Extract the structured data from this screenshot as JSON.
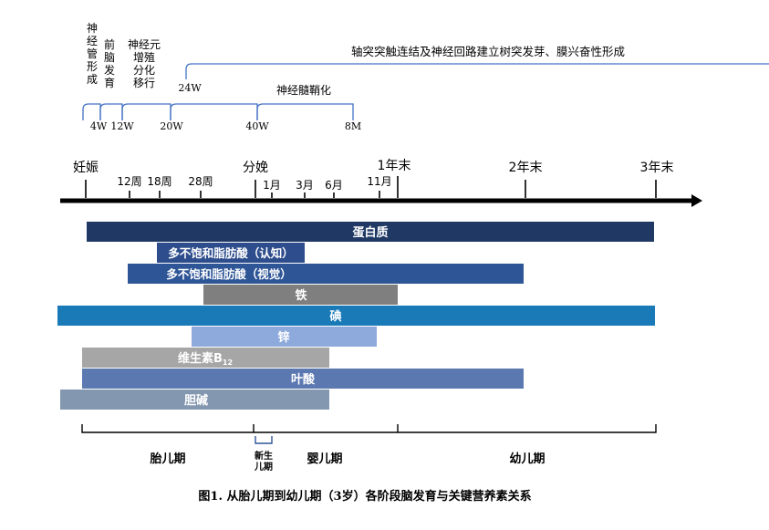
{
  "neuro": {
    "neural_tube": "神\n经\n管\n形\n成",
    "forebrain": "前\n脑\n发\n育",
    "neuron_prolif": "神经元\n增殖\n分化\n移行",
    "synapse": "轴突突触连结及神经回路建立树突发芽、膜兴奋性形成",
    "myelination": "神经髓鞘化",
    "labels": [
      "4W",
      "12W",
      "20W",
      "40W",
      "8M",
      "24W"
    ]
  },
  "timeline": {
    "top_labels": [
      "妊娠",
      "分娩",
      "1年末",
      "2年末",
      "3年末"
    ],
    "upper_ticks": [
      "12周",
      "18周",
      "28周",
      "11月"
    ],
    "lower_ticks": [
      "1月",
      "3月",
      "6月"
    ]
  },
  "nutrients": [
    {
      "label": "蛋白质",
      "color": "#1f3864"
    },
    {
      "label": "多不饱和脂肪酸（认知）",
      "color": "#2e4d8c"
    },
    {
      "label": "多不饱和脂肪酸（视觉）",
      "color": "#2e5596"
    },
    {
      "label": "铁",
      "color": "#7f7f7f"
    },
    {
      "label": "碘",
      "color": "#1a7ab8"
    },
    {
      "label": "锌",
      "color": "#8ea9db"
    },
    {
      "label": "维生素B",
      "sub": "12",
      "color": "#a6a6a6"
    },
    {
      "label": "叶酸",
      "color": "#5b78b0"
    },
    {
      "label": "胆碱",
      "color": "#8497b0"
    }
  ],
  "periods": {
    "fetal": "胎儿期",
    "newborn": "新生\n儿期",
    "infant": "婴儿期",
    "toddler": "幼儿期"
  },
  "caption": "图1. 从胎儿期到幼儿期（3岁）各阶段脑发育与关键营养素关系"
}
